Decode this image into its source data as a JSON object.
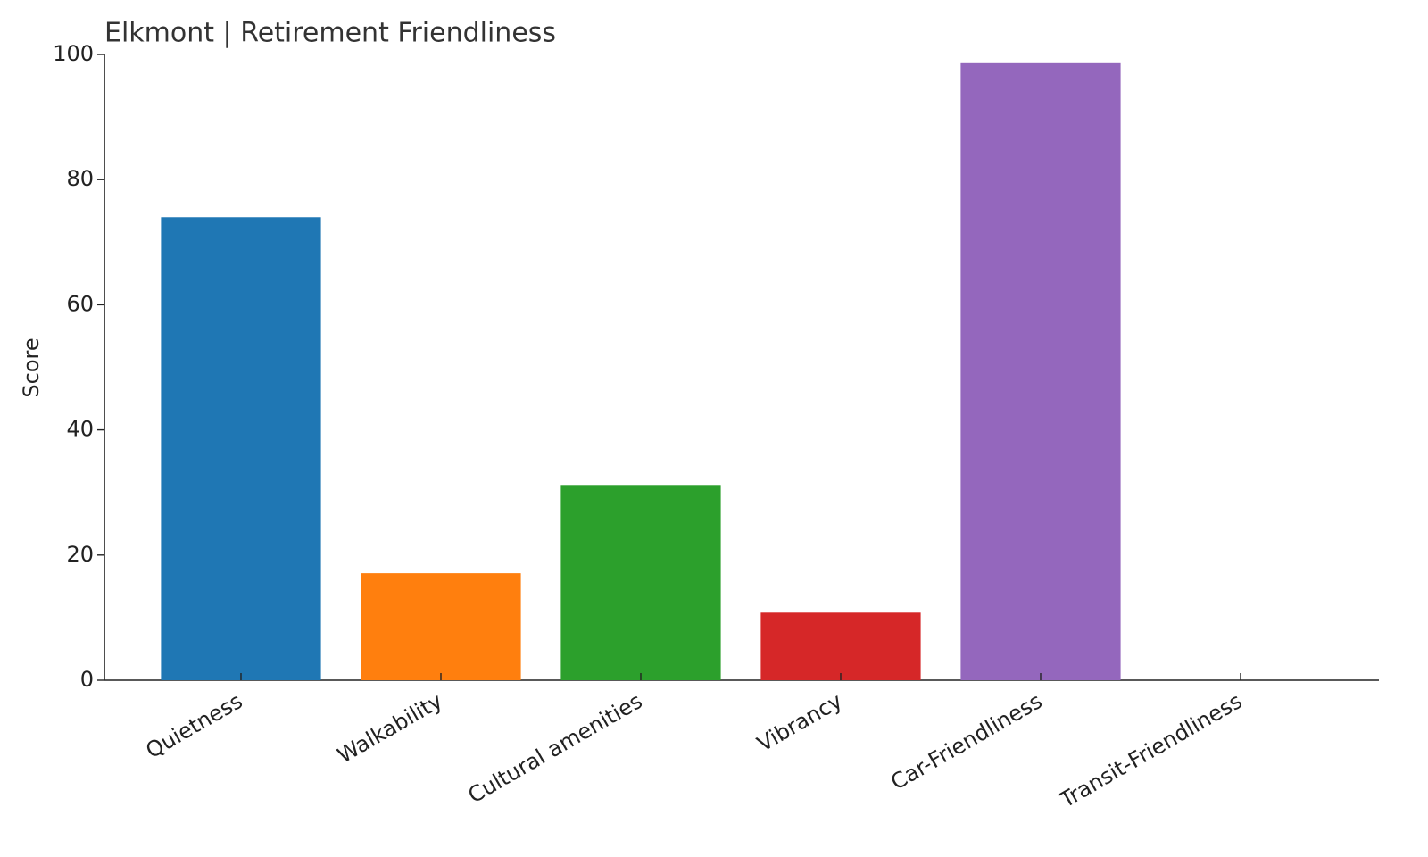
{
  "chart_data": {
    "type": "bar",
    "title": "Elkmont | Retirement Friendliness",
    "y_label": "Score",
    "categories": [
      "Quietness",
      "Walkability",
      "Cultural amenities",
      "Vibrancy",
      "Car-Friendliness",
      "Transit-Friendliness"
    ],
    "values": [
      74,
      17.1,
      31.2,
      10.8,
      98.6,
      0
    ],
    "colors": [
      "#1f77b4",
      "#ff7f0e",
      "#2ca02c",
      "#d62728",
      "#9467bd",
      "#8c564b"
    ],
    "ylim": [
      0,
      100
    ],
    "yticks": [
      0,
      20,
      40,
      60,
      80,
      100
    ],
    "grid": false
  }
}
